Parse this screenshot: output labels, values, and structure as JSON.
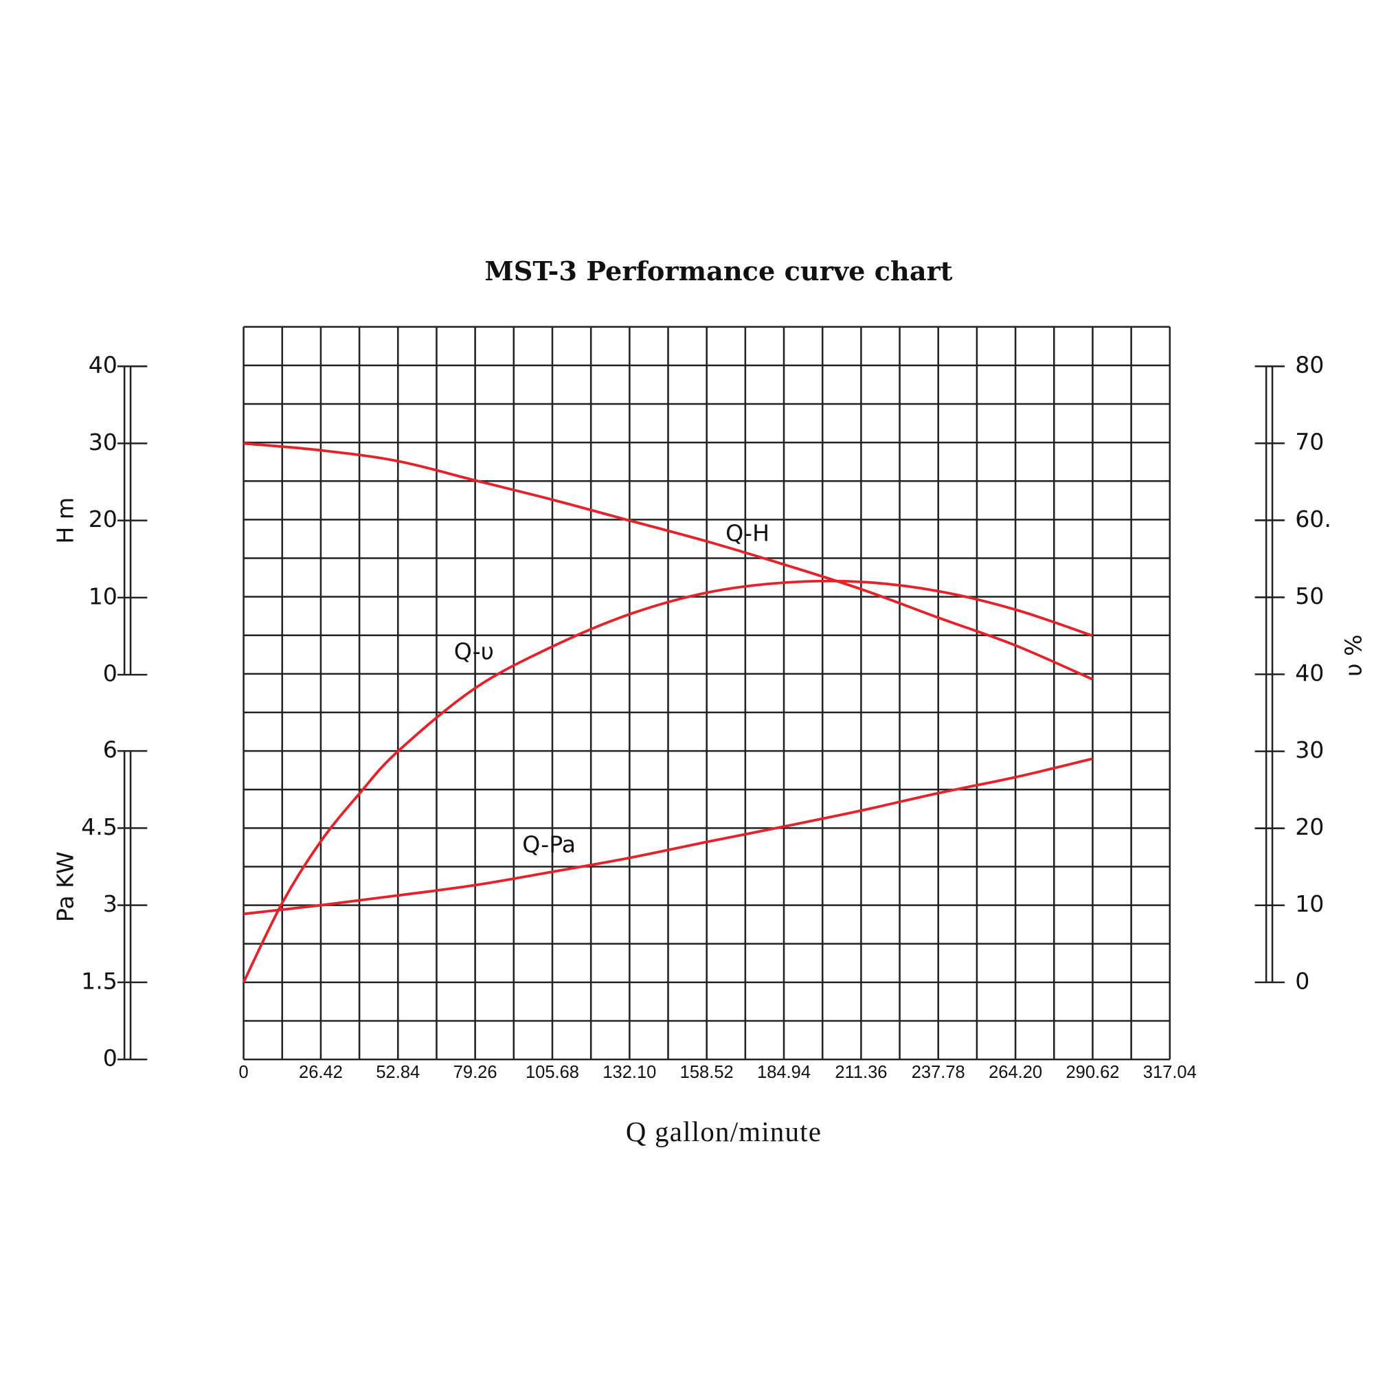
{
  "chart_data": {
    "type": "line",
    "title": "MST-3 Performance curve chart",
    "x_label": "Q gallon/minute",
    "y_label": "H m",
    "y2_label": "Pa  KW",
    "y3_label": "υ %",
    "xlim": [
      0,
      317.04
    ],
    "xticks": [
      0,
      26.42,
      52.84,
      79.26,
      105.68,
      {
        "value": 132.1,
        "label": "132.10"
      },
      158.52,
      184.94,
      211.36,
      237.78,
      {
        "value": 264.2,
        "label": "264.20"
      },
      290.62,
      317.04
    ],
    "ylim": [
      0,
      40
    ],
    "yticks": [
      0,
      10,
      20,
      30,
      40
    ],
    "y2lim": [
      0,
      6
    ],
    "y2ticks": [
      0,
      1.5,
      3,
      4.5,
      6
    ],
    "y3lim": [
      0,
      80
    ],
    "y3ticks": [
      0,
      10,
      20,
      30,
      40,
      50,
      {
        "value": 60,
        "label": "60."
      },
      70,
      80
    ],
    "grid": true,
    "series": [
      {
        "name": "Q-H",
        "color": "#e4222a",
        "axis": "y",
        "x": [
          0,
          26.42,
          52.84,
          79.26,
          105.68,
          132.1,
          158.52,
          184.94,
          211.36,
          237.78,
          264.2,
          290.62
        ],
        "values": [
          30,
          29.1,
          27.7,
          25.2,
          22.7,
          20,
          17.3,
          14.3,
          11.1,
          7.4,
          3.8,
          -0.6
        ]
      },
      {
        "name": "Q-υ",
        "color": "#e4222a",
        "axis": "y3",
        "x": [
          0,
          13.21,
          26.42,
          39.63,
          52.84,
          79.26,
          105.68,
          132.1,
          158.52,
          184.94,
          211.36,
          237.78,
          264.2,
          290.62
        ],
        "values": [
          0,
          10.3,
          18.3,
          24.5,
          30,
          38.2,
          43.6,
          47.8,
          50.6,
          51.9,
          52,
          50.8,
          48.4,
          45
        ]
      },
      {
        "name": "Q-Pa",
        "color": "#e4222a",
        "axis": "y2",
        "x": [
          0,
          26.42,
          52.84,
          79.26,
          105.68,
          132.1,
          158.52,
          184.94,
          211.36,
          237.78,
          264.2,
          290.62
        ],
        "values": [
          2.83,
          3.0,
          3.19,
          3.39,
          3.65,
          3.92,
          4.23,
          4.53,
          4.84,
          5.18,
          5.49,
          5.85
        ]
      }
    ]
  }
}
